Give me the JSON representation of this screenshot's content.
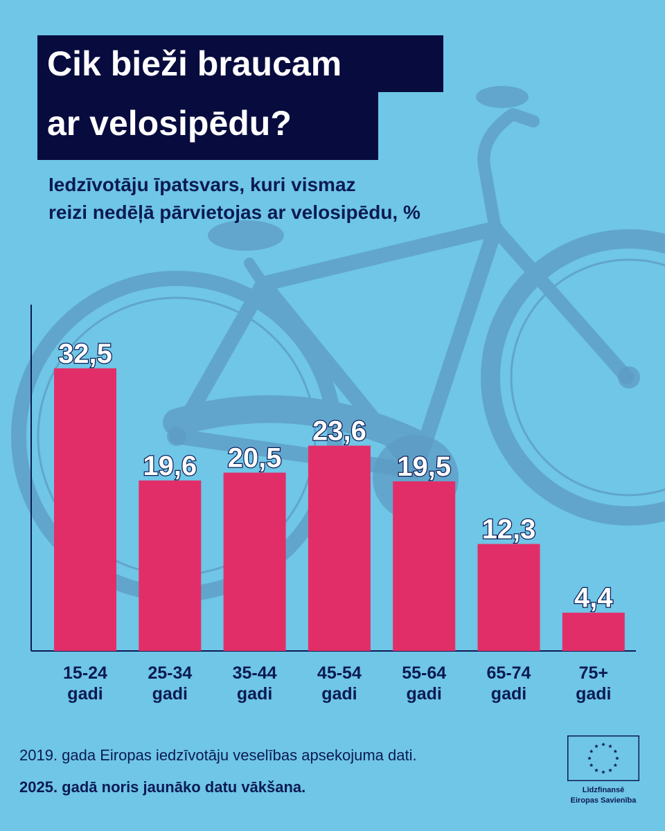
{
  "title": {
    "line1": "Cik bieži braucam",
    "line2": "ar velosipēdu?"
  },
  "subtitle": {
    "line1": "Iedzīvotāju īpatsvars, kuri vismaz",
    "line2": "reizi nedēļā pārvietojas ar velosipēdu, %"
  },
  "chart_data": {
    "type": "bar",
    "title": "Cik bieži braucam ar velosipēdu?",
    "subtitle": "Iedzīvotāju īpatsvars, kuri vismaz reizi nedēļā pārvietojas ar velosipēdu, %",
    "categories": [
      [
        "15-24",
        "gadi"
      ],
      [
        "25-34",
        "gadi"
      ],
      [
        "35-44",
        "gadi"
      ],
      [
        "45-54",
        "gadi"
      ],
      [
        "55-64",
        "gadi"
      ],
      [
        "65-74",
        "gadi"
      ],
      [
        "75+",
        "gadi"
      ]
    ],
    "values": [
      32.5,
      19.6,
      20.5,
      23.6,
      19.5,
      12.3,
      4.4
    ],
    "value_labels": [
      "32,5",
      "19,6",
      "20,5",
      "23,6",
      "19,5",
      "12,3",
      "4,4"
    ],
    "ylim": [
      0,
      42
    ],
    "bar_color": "#e22e68",
    "axis_color": "#0b1a55",
    "grid": false,
    "legend": "none"
  },
  "footer": {
    "source": "2019. gada Eiropas iedzīvotāju veselības apsekojuma dati.",
    "note": "2025. gadā noris jaunāko datu vākšana."
  },
  "eu_logo": {
    "icon": "eu-flag-icon",
    "line1": "Līdzfinansē",
    "line2": "Eiropas Savienība"
  },
  "colors": {
    "background": "#6fc6e6",
    "title_bg": "#070b3e",
    "text_dark": "#0b1a55"
  }
}
